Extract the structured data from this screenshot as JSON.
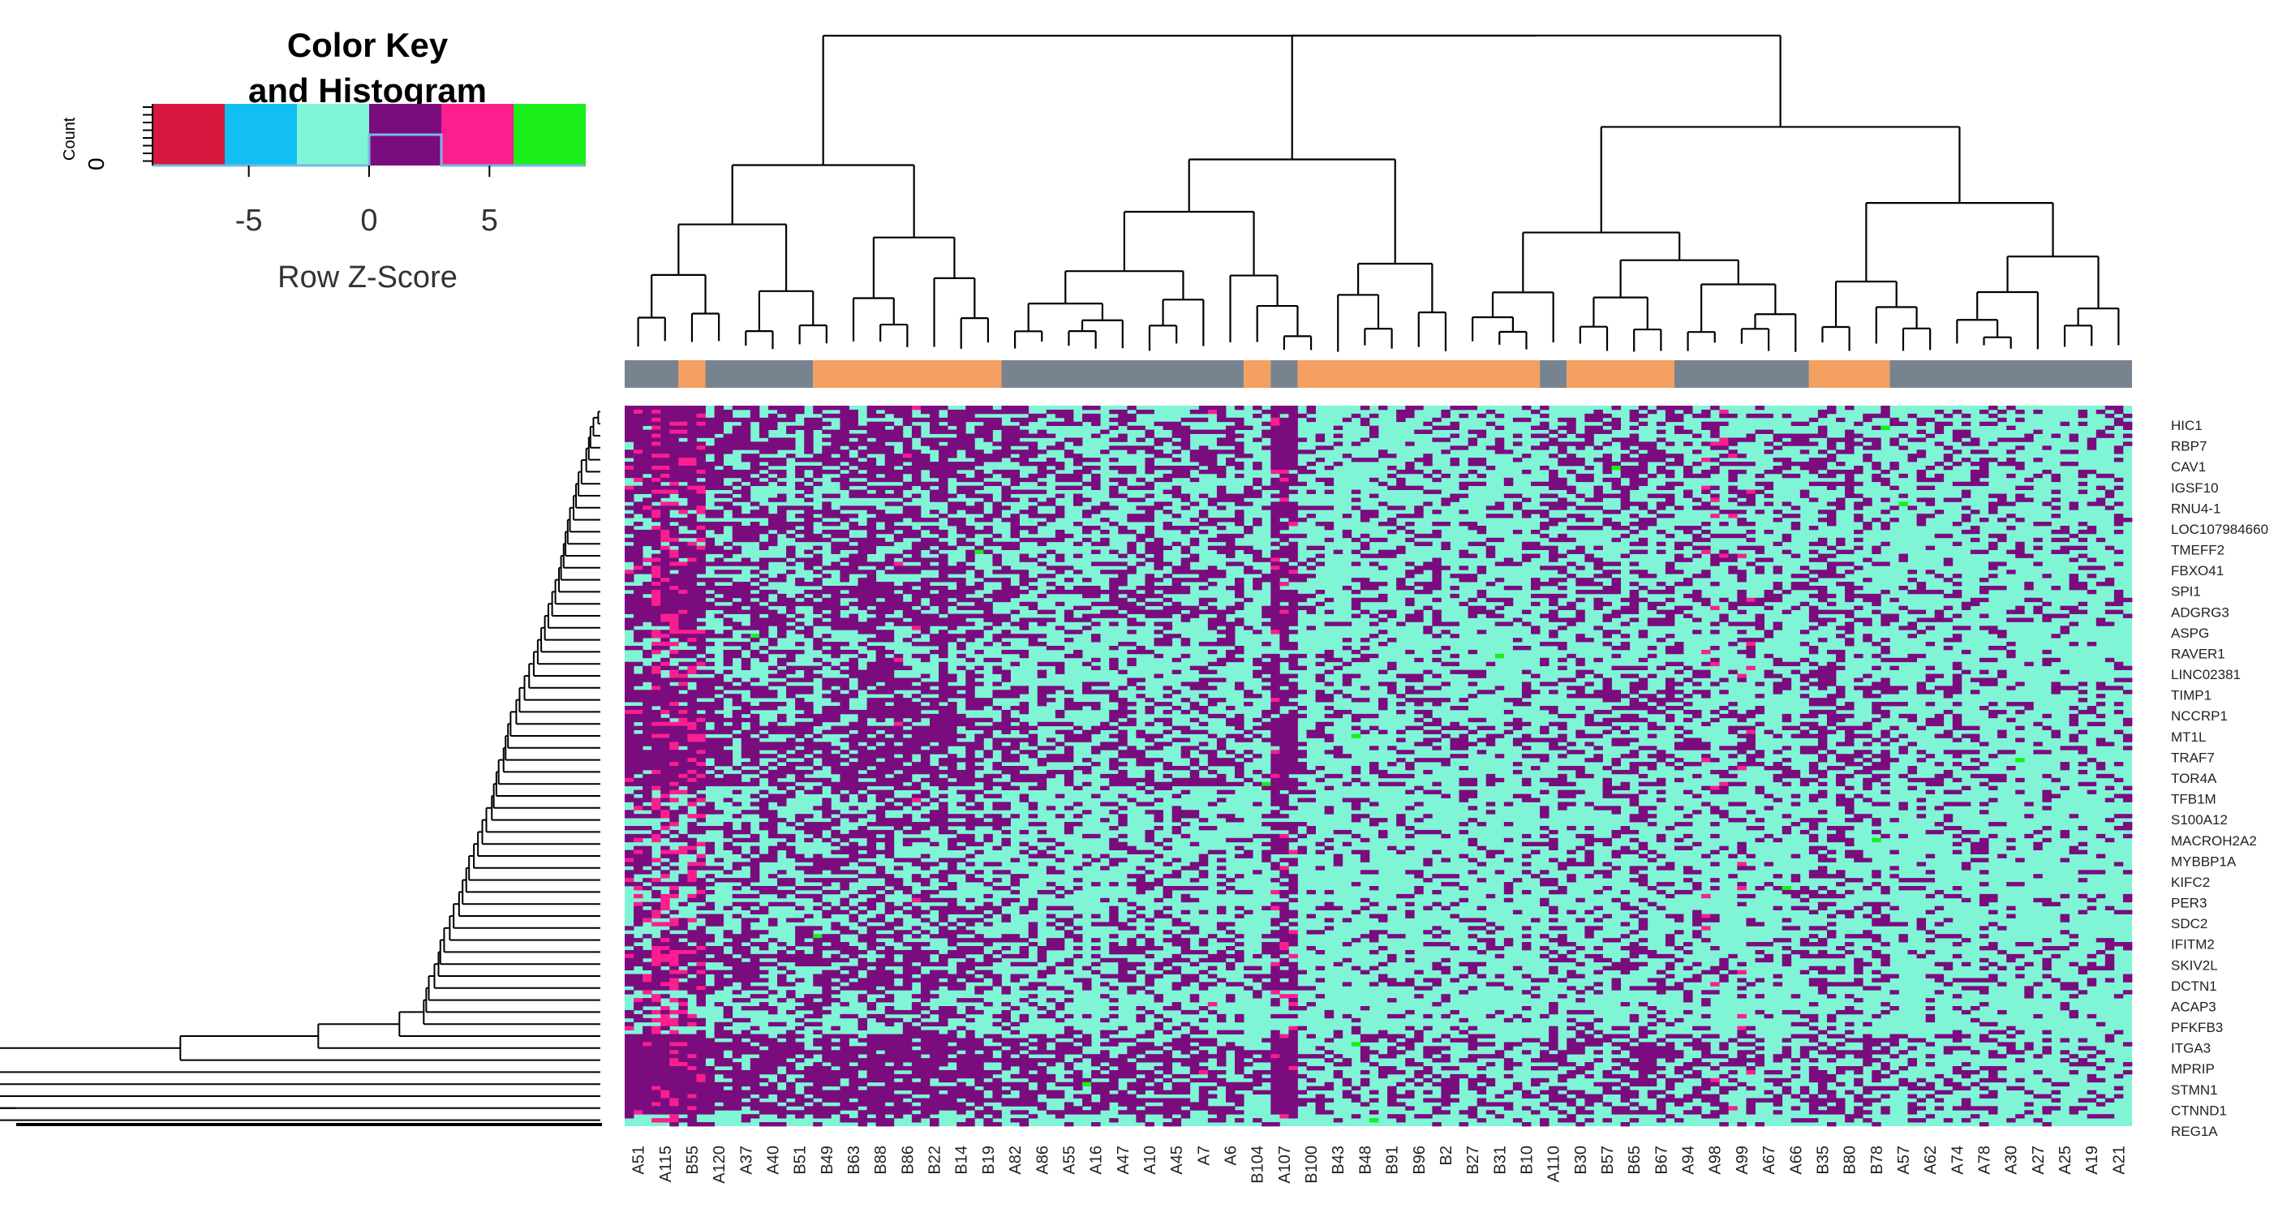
{
  "chart_data": {
    "type": "heatmap",
    "title": "",
    "color_key": {
      "title_line1": "Color Key",
      "title_line2": "and Histogram",
      "count_label": "Count",
      "count_tick": "0",
      "xlabel": "Row Z-Score",
      "range": [
        -9,
        9
      ],
      "ticks": [
        -5,
        0,
        5
      ],
      "tick_labels": [
        "-5",
        "0",
        "5"
      ],
      "bins": [
        {
          "from": -9,
          "to": -6,
          "color": "#d6183f"
        },
        {
          "from": -6,
          "to": -3,
          "color": "#12bff2"
        },
        {
          "from": -3,
          "to": 0,
          "color": "#7ff5d6"
        },
        {
          "from": 0,
          "to": 3,
          "color": "#7a0c7e"
        },
        {
          "from": 3,
          "to": 6,
          "color": "#fb1e8f"
        },
        {
          "from": 6,
          "to": 9,
          "color": "#1bee1b"
        }
      ]
    },
    "columns": [
      "A51",
      "A115",
      "B55",
      "A120",
      "A37",
      "A40",
      "B51",
      "B49",
      "B63",
      "B88",
      "B86",
      "B22",
      "B14",
      "B19",
      "A82",
      "A86",
      "A55",
      "A16",
      "A47",
      "A10",
      "A45",
      "A7",
      "A6",
      "B104",
      "A107",
      "B100",
      "B43",
      "B48",
      "B91",
      "B96",
      "B2",
      "B27",
      "B31",
      "B10",
      "A110",
      "B30",
      "B57",
      "B65",
      "B67",
      "A94",
      "A98",
      "A99",
      "A67",
      "A66",
      "B35",
      "B80",
      "B78",
      "A57",
      "A62",
      "A74",
      "A78",
      "A30",
      "A27",
      "A25",
      "A19",
      "A21"
    ],
    "groups": [
      {
        "label": "A",
        "color": "#778490",
        "span": [
          0,
          2
        ]
      },
      {
        "label": "B",
        "color": "#f4a060",
        "span": [
          2,
          3
        ]
      },
      {
        "label": "A",
        "color": "#778490",
        "span": [
          3,
          7
        ]
      },
      {
        "label": "B",
        "color": "#f4a060",
        "span": [
          7,
          14
        ]
      },
      {
        "label": "A",
        "color": "#778490",
        "span": [
          14,
          23
        ]
      },
      {
        "label": "B",
        "color": "#f4a060",
        "span": [
          23,
          24
        ]
      },
      {
        "label": "A",
        "color": "#778490",
        "span": [
          24,
          25
        ]
      },
      {
        "label": "B",
        "color": "#f4a060",
        "span": [
          25,
          34
        ]
      },
      {
        "label": "A",
        "color": "#778490",
        "span": [
          34,
          35
        ]
      },
      {
        "label": "B",
        "color": "#f4a060",
        "span": [
          35,
          39
        ]
      },
      {
        "label": "A",
        "color": "#778490",
        "span": [
          39,
          44
        ]
      },
      {
        "label": "B",
        "color": "#f4a060",
        "span": [
          44,
          47
        ]
      },
      {
        "label": "A",
        "color": "#778490",
        "span": [
          47,
          56
        ]
      }
    ],
    "rows": [
      "HIC1",
      "RBP7",
      "CAV1",
      "IGSF10",
      "RNU4-1",
      "LOC107984660",
      "TMEFF2",
      "FBXO41",
      "SPI1",
      "ADGRG3",
      "ASPG",
      "RAVER1",
      "LINC02381",
      "TIMP1",
      "NCCRP1",
      "MT1L",
      "TRAF7",
      "TOR4A",
      "TFB1M",
      "S100A12",
      "MACROH2A2",
      "MYBBP1A",
      "KIFC2",
      "PER3",
      "SDC2",
      "IFITM2",
      "SKIV2L",
      "DCTN1",
      "ACAP3",
      "PFKFB3",
      "ITGA3",
      "MPRIP",
      "STMN1",
      "CTNND1",
      "REG1A"
    ],
    "value_levels": [
      "-9 to -6",
      "-6 to -3",
      "-3 to 0",
      "0 to 3",
      "3 to 6",
      "6 to 9"
    ],
    "dominant_levels": {
      "low": "-3 to 0",
      "high": "0 to 3",
      "extreme_high": "3 to 6",
      "outlier": "6 to 9"
    },
    "column_high_fraction": [
      0.75,
      0.85,
      0.8,
      0.55,
      0.6,
      0.5,
      0.45,
      0.55,
      0.6,
      0.65,
      0.6,
      0.6,
      0.55,
      0.5,
      0.45,
      0.35,
      0.35,
      0.3,
      0.4,
      0.4,
      0.4,
      0.4,
      0.4,
      0.25,
      0.8,
      0.2,
      0.2,
      0.25,
      0.25,
      0.25,
      0.25,
      0.25,
      0.25,
      0.25,
      0.35,
      0.35,
      0.35,
      0.4,
      0.35,
      0.3,
      0.3,
      0.3,
      0.25,
      0.25,
      0.45,
      0.35,
      0.35,
      0.2,
      0.2,
      0.25,
      0.25,
      0.2,
      0.2,
      0.2,
      0.2,
      0.2
    ],
    "column_extreme_fraction": [
      0.05,
      0.25,
      0.15,
      0.0,
      0.0,
      0.0,
      0.0,
      0.0,
      0.0,
      0.0,
      0.01,
      0.0,
      0.0,
      0.0,
      0.0,
      0.0,
      0.0,
      0.0,
      0.0,
      0.0,
      0.0,
      0.01,
      0.0,
      0.0,
      0.05,
      0.0,
      0.0,
      0.0,
      0.0,
      0.0,
      0.0,
      0.0,
      0.0,
      0.0,
      0.0,
      0.0,
      0.0,
      0.0,
      0.0,
      0.0,
      0.04,
      0.02,
      0.0,
      0.0,
      0.0,
      0.0,
      0.0,
      0.0,
      0.0,
      0.0,
      0.0,
      0.0,
      0.0,
      0.0,
      0.0,
      0.0
    ]
  }
}
